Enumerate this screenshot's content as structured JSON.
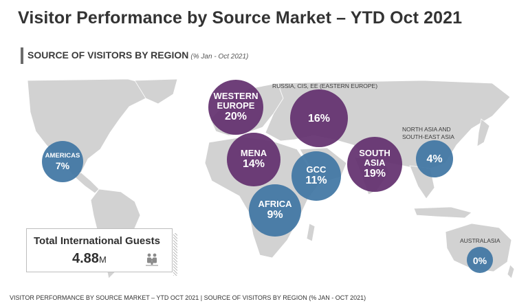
{
  "title": "Visitor Performance by Source Market – YTD Oct 2021",
  "section": {
    "heading": "SOURCE OF VISITORS BY REGION",
    "subheading": "(% Jan - Oct 2021)"
  },
  "colors": {
    "purple": "#622f6e",
    "blue": "#3f75a3",
    "land": "#d2d2d2"
  },
  "regions": [
    {
      "name": "WESTERN EUROPE",
      "name_lines": [
        "WESTERN",
        "EUROPE"
      ],
      "value": "20%",
      "color": "purple"
    },
    {
      "name": "RUSSIA, CIS, EE (EASTERN EUROPE)",
      "value": "16%",
      "color": "purple"
    },
    {
      "name": "MENA",
      "value": "14%",
      "color": "purple"
    },
    {
      "name": "GCC",
      "value": "11%",
      "color": "blue"
    },
    {
      "name": "SOUTH ASIA",
      "name_lines": [
        "SOUTH",
        "ASIA"
      ],
      "value": "19%",
      "color": "purple"
    },
    {
      "name": "NORTH ASIA AND SOUTH-EAST ASIA",
      "name_lines": [
        "NORTH ASIA AND",
        "SOUTH-EAST ASIA"
      ],
      "value": "4%",
      "color": "blue"
    },
    {
      "name": "AMERICAS",
      "value": "7%",
      "color": "blue"
    },
    {
      "name": "AFRICA",
      "value": "9%",
      "color": "blue"
    },
    {
      "name": "AUSTRALASIA",
      "value": "0%",
      "color": "blue"
    }
  ],
  "total": {
    "label": "Total International Guests",
    "value": "4.88",
    "unit": "M",
    "icon": "people-icon"
  },
  "footer": "VISITOR PERFORMANCE BY SOURCE MARKET – YTD OCT 2021 | SOURCE OF VISITORS BY REGION (% JAN - OCT 2021)"
}
